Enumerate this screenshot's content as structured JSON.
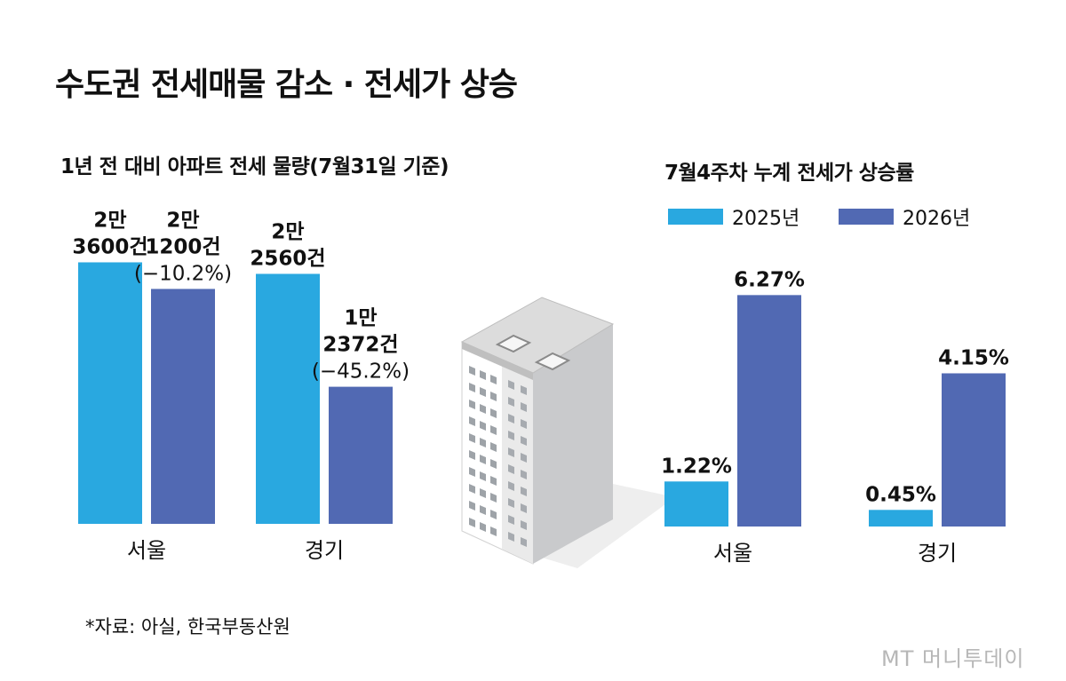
{
  "title": "수도권 전세매물 감소 · 전세가 상승",
  "left_chart_title": "1년 전 대비 아파트 전세 물량(7월31일 기준)",
  "right_chart_title": "7월4주차 누계 전세가 상승률",
  "legend": {
    "series_a": "2025년",
    "series_b": "2026년"
  },
  "source": "*자료: 아실, 한국부동산원",
  "watermark": "MT 머니투데이",
  "colors": {
    "series_a": "#29a8e0",
    "series_b": "#5169b3"
  },
  "chart_data": [
    {
      "type": "bar",
      "title": "1년 전 대비 아파트 전세 물량(7월31일 기준)",
      "categories": [
        "서울",
        "경기"
      ],
      "series": [
        {
          "values": [
            23600,
            22560
          ],
          "labels": [
            [
              "2만",
              "3600건"
            ],
            [
              "2만",
              "2560건"
            ]
          ]
        },
        {
          "values": [
            21200,
            12372
          ],
          "labels": [
            [
              "2만",
              "1200건",
              "(−10.2%)"
            ],
            [
              "1만",
              "2372건",
              "(−45.2%)"
            ]
          ]
        }
      ],
      "ylim": [
        0,
        25000
      ]
    },
    {
      "type": "bar",
      "title": "7월4주차 누계 전세가 상승률",
      "categories": [
        "서울",
        "경기"
      ],
      "series": [
        {
          "name": "2025년",
          "values": [
            1.22,
            0.45
          ],
          "labels": [
            "1.22%",
            "0.45%"
          ]
        },
        {
          "name": "2026년",
          "values": [
            6.27,
            4.15
          ],
          "labels": [
            "6.27%",
            "4.15%"
          ]
        }
      ],
      "ylim": [
        0,
        7
      ]
    }
  ]
}
